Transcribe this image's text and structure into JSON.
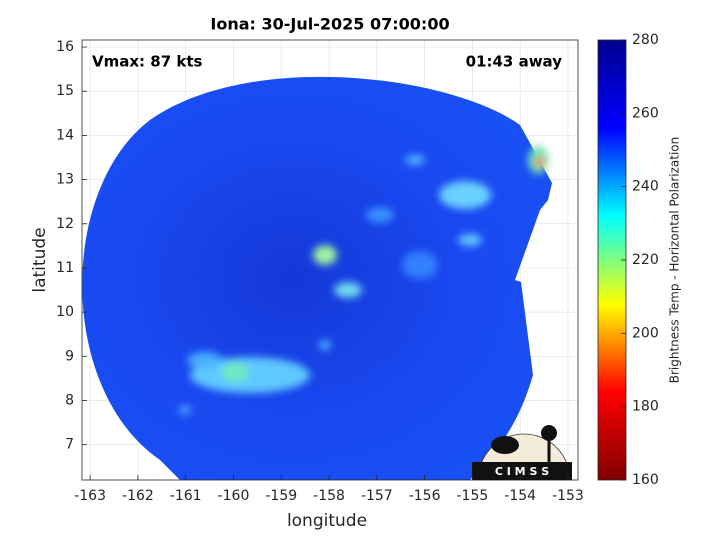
{
  "chart_data": {
    "type": "heatmap",
    "title": "Iona: 30-Jul-2025 07:00:00",
    "annotations": [
      "Vmax: 87 kts",
      "01:43 away"
    ],
    "xlabel": "longitude",
    "ylabel": "latitude",
    "xlim": [
      -163.17,
      -152.79
    ],
    "xticks": [
      -163,
      -162,
      -161,
      -160,
      -159,
      -158,
      -157,
      -156,
      -155,
      -154,
      -153
    ],
    "ylim": [
      6.2,
      16.16
    ],
    "yticks": [
      7,
      8,
      9,
      10,
      11,
      12,
      13,
      14,
      15,
      16
    ],
    "grid": true,
    "colorbar": {
      "label": "Brightness Temp - Horizontal Polarization",
      "lim": [
        160,
        280
      ],
      "ticks": [
        160,
        180,
        200,
        220,
        240,
        260,
        280
      ],
      "colormap": [
        "#800000",
        "#ff0000",
        "#ffff00",
        "#00ffff",
        "#0000ff",
        "#00008f"
      ]
    },
    "logo": "C I M S S"
  }
}
